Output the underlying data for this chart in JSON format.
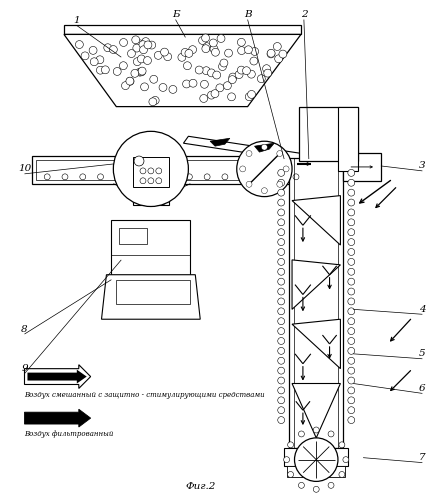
{
  "bg_color": "#ffffff",
  "line_color": "#000000",
  "title": "Фиг.2",
  "legend1": "Воздух смешанный с защитно - стимулирующими средствами",
  "legend2": "Воздух фильтрованный"
}
